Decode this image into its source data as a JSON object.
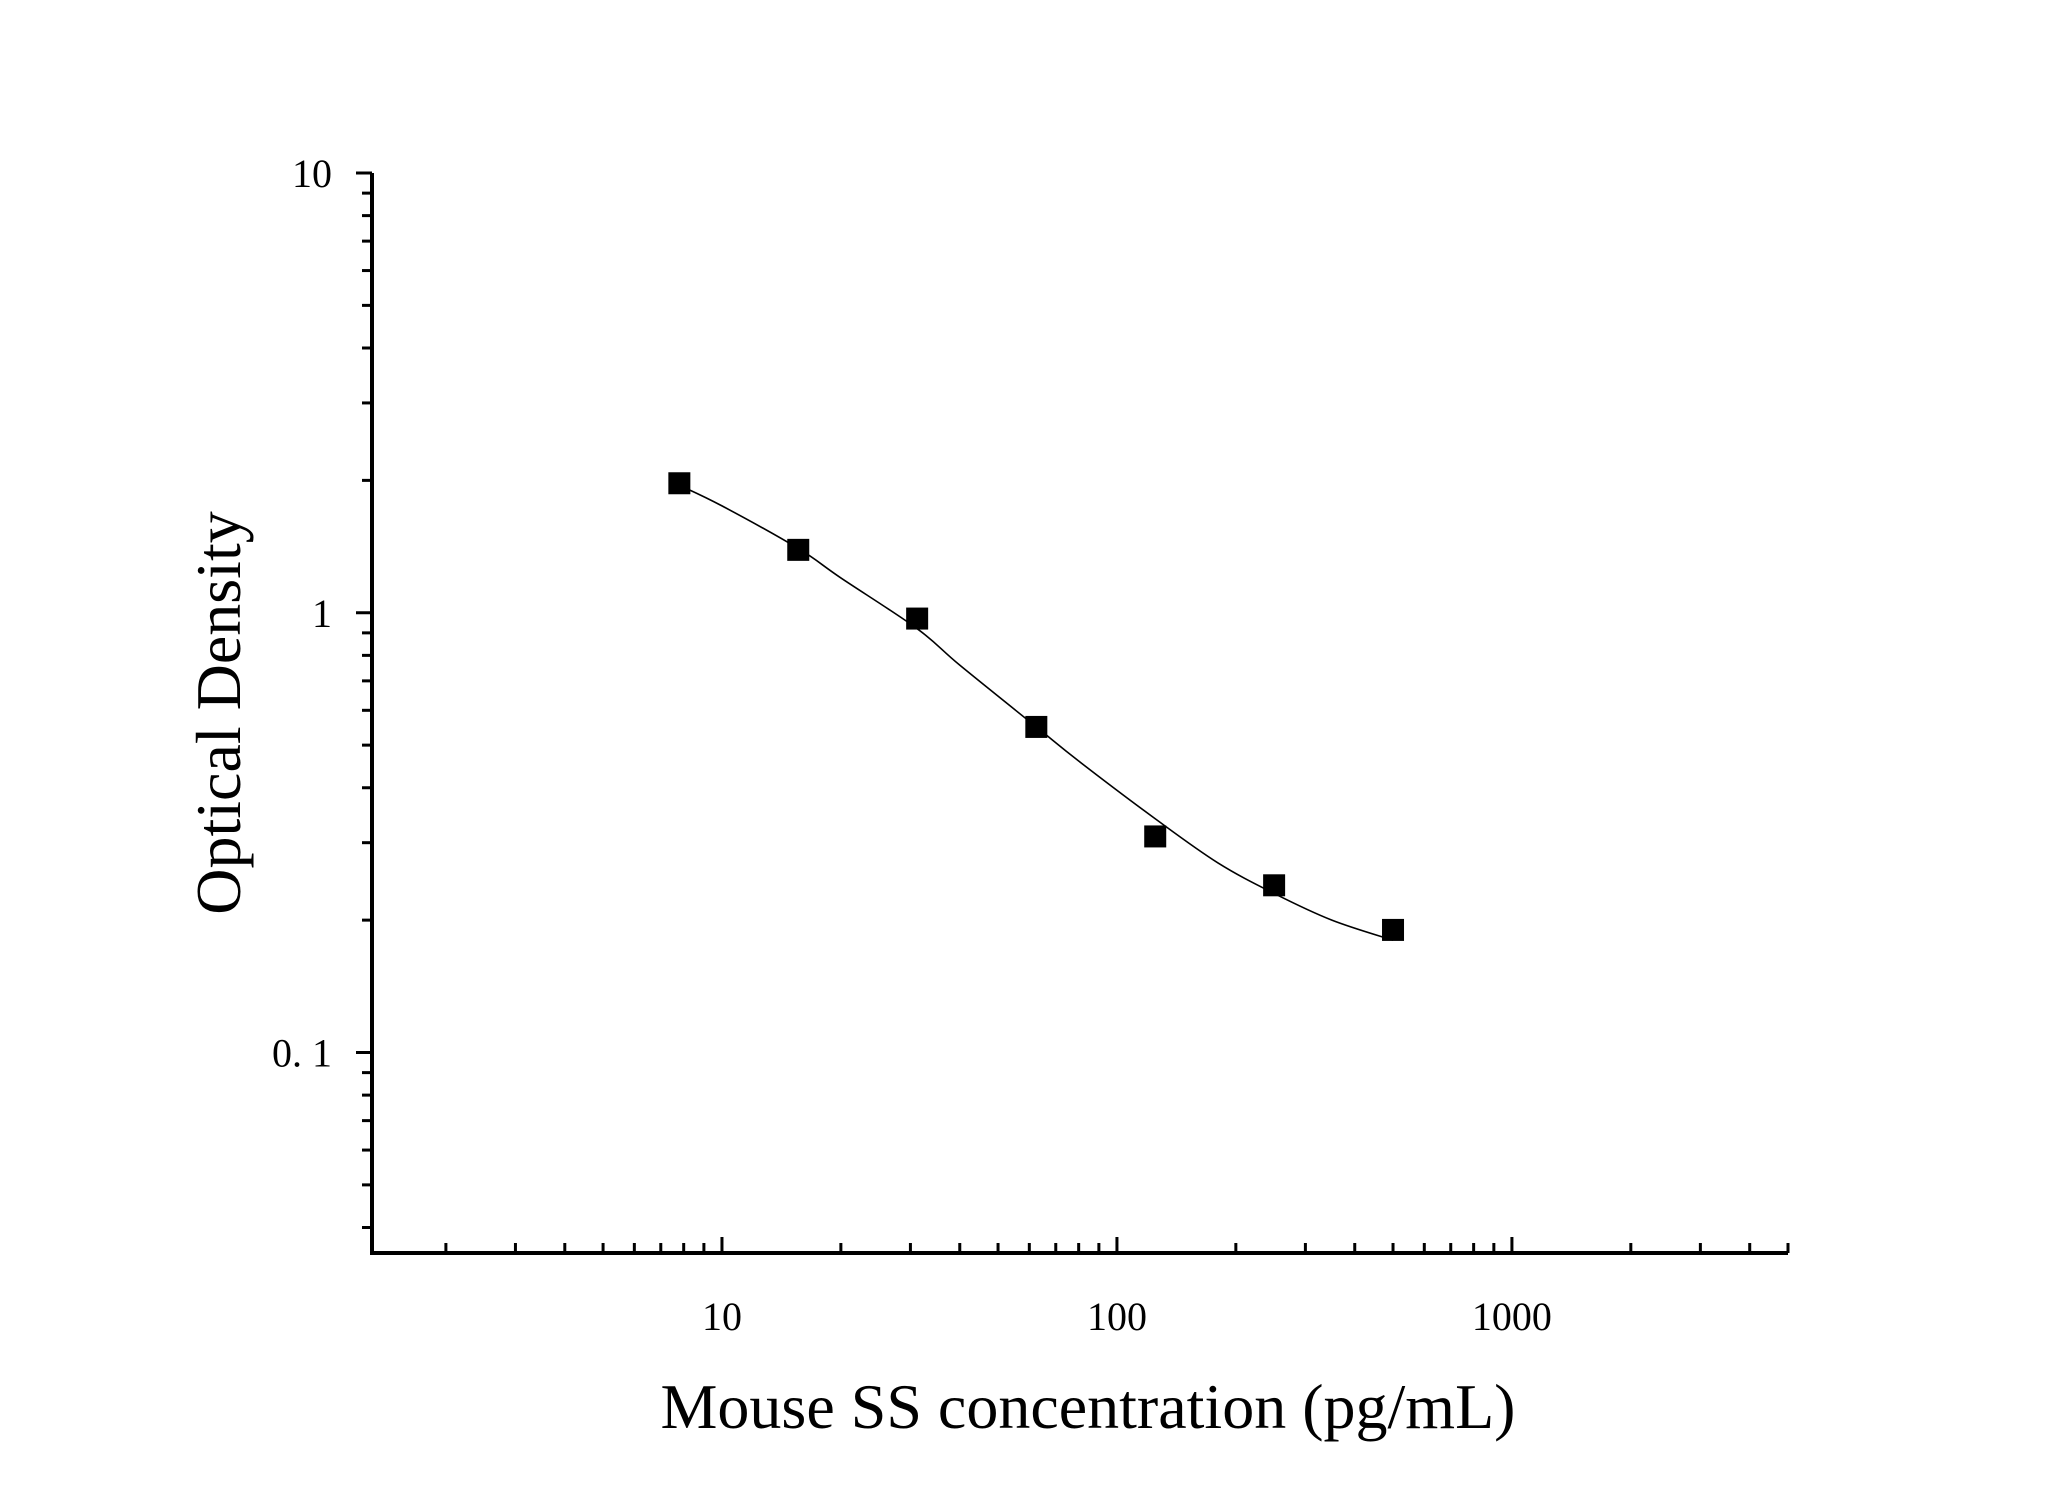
{
  "chart_data": {
    "type": "scatter",
    "title": "",
    "xlabel": "Mouse SS concentration (pg/mL)",
    "ylabel": "Optical Density",
    "x_scale": "log",
    "y_scale": "log",
    "xlim": [
      1.3,
      5000
    ],
    "ylim": [
      0.035,
      10
    ],
    "x_ticks": [
      {
        "value": 10,
        "label": "10"
      },
      {
        "value": 100,
        "label": "100"
      },
      {
        "value": 1000,
        "label": "1000"
      }
    ],
    "y_ticks": [
      {
        "value": 0.1,
        "label": "0. 1"
      },
      {
        "value": 1,
        "label": "1"
      },
      {
        "value": 10,
        "label": "10"
      }
    ],
    "grid": false,
    "legend": "none",
    "colors": {
      "points": "#000000",
      "curve": "#000000",
      "axes": "#000000"
    },
    "series": [
      {
        "type": "scatter",
        "marker": "square",
        "x": [
          7.8,
          15.6,
          31.2,
          62.5,
          125,
          250,
          500
        ],
        "y": [
          1.97,
          1.39,
          0.97,
          0.55,
          0.31,
          0.24,
          0.19
        ]
      },
      {
        "type": "line",
        "fit": "smooth curve",
        "x": [
          7.8,
          10,
          15.6,
          20,
          31.2,
          40,
          62.5,
          80,
          125,
          180,
          250,
          350,
          500
        ],
        "y": [
          1.95,
          1.75,
          1.4,
          1.2,
          0.92,
          0.76,
          0.55,
          0.46,
          0.34,
          0.27,
          0.23,
          0.2,
          0.18
        ]
      }
    ]
  }
}
